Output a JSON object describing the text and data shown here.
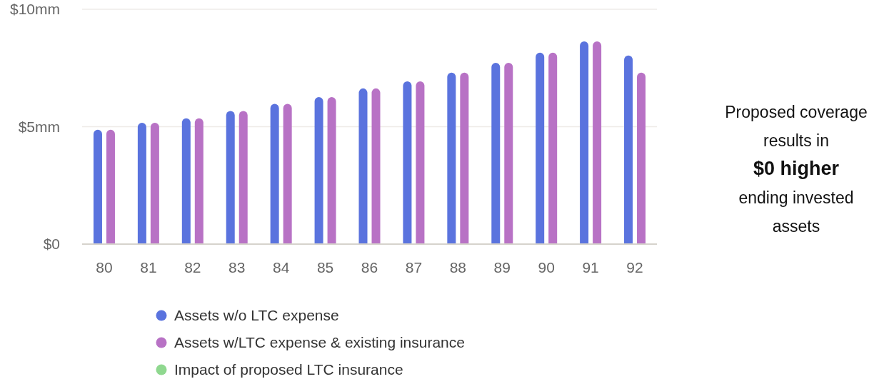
{
  "chart_data": {
    "type": "bar",
    "categories": [
      "80",
      "81",
      "82",
      "83",
      "84",
      "85",
      "86",
      "87",
      "88",
      "89",
      "90",
      "91",
      "92"
    ],
    "series": [
      {
        "name": "Assets w/o LTC expense",
        "color": "#5a73de",
        "values": [
          4.87,
          5.17,
          5.36,
          5.67,
          5.97,
          6.26,
          6.63,
          6.93,
          7.3,
          7.72,
          8.15,
          8.63,
          8.03
        ]
      },
      {
        "name": "Assets w/LTC expense & existing insurance",
        "color": "#b872c5",
        "values": [
          4.87,
          5.17,
          5.36,
          5.67,
          5.97,
          6.26,
          6.63,
          6.93,
          7.3,
          7.72,
          8.15,
          8.63,
          7.3
        ]
      },
      {
        "name": "Impact of proposed LTC insurance",
        "color": "#8fd88f",
        "values": [
          null,
          null,
          null,
          null,
          null,
          null,
          null,
          null,
          null,
          null,
          null,
          null,
          null
        ]
      }
    ],
    "ylim": [
      0,
      10
    ],
    "yticks": [
      {
        "value": 0,
        "label": "$0"
      },
      {
        "value": 5,
        "label": "$5mm"
      },
      {
        "value": 10,
        "label": "$10mm"
      }
    ],
    "grid": "y",
    "legend": "bottom",
    "annotations": [
      "Proposed coverage results in",
      "$0 higher",
      "ending invested assets"
    ]
  }
}
